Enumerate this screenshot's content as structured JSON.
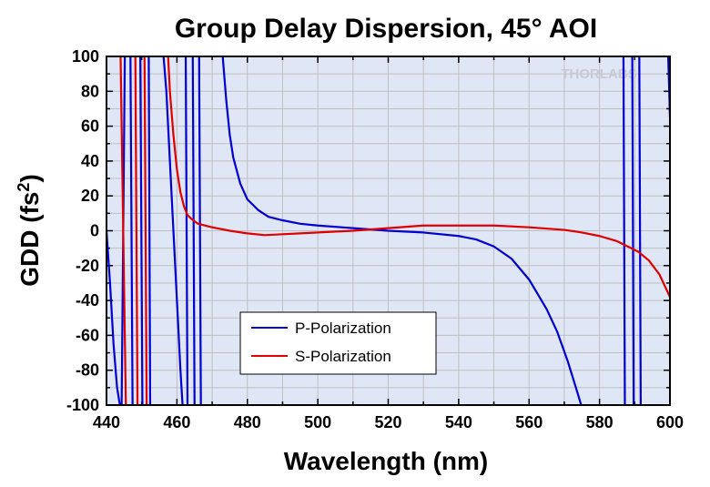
{
  "chart_data": {
    "type": "line",
    "title": "Group Delay Dispersion, 45° AOI",
    "xlabel": "Wavelength (nm)",
    "ylabel_main": "GDD (fs",
    "ylabel_sup": "2",
    "ylabel_close": ")",
    "xlim": [
      440,
      600
    ],
    "ylim": [
      -100,
      100
    ],
    "xticks": [
      440,
      460,
      480,
      500,
      520,
      540,
      560,
      580,
      600
    ],
    "yticks": [
      -100,
      -80,
      -60,
      -40,
      -20,
      0,
      20,
      40,
      60,
      80,
      100
    ],
    "grid": true,
    "legend_position": "bottom-left",
    "watermark": "THORLABS",
    "colors": {
      "plot_background": "#dfe6f6",
      "grid": "#bfbfbf",
      "p": "#0000d0",
      "s": "#e00000"
    },
    "series": [
      {
        "name": "P-Polarization",
        "color": "#0000d0",
        "segments": [
          [
            [
              440,
              0
            ],
            [
              441,
              -30
            ],
            [
              442,
              -65
            ],
            [
              443,
              -90
            ],
            [
              443.8,
              -100
            ]
          ],
          [
            [
              444.3,
              -100
            ],
            [
              445.2,
              100
            ]
          ],
          [
            [
              446.8,
              100
            ],
            [
              447.4,
              -100
            ]
          ],
          [
            [
              449.6,
              100
            ],
            [
              450.2,
              -100
            ]
          ],
          [
            [
              452,
              100
            ],
            [
              452.4,
              -100
            ]
          ],
          [
            [
              456.2,
              100
            ],
            [
              457,
              80
            ],
            [
              458,
              40
            ],
            [
              459,
              0
            ],
            [
              460,
              -40
            ],
            [
              461,
              -80
            ],
            [
              461.6,
              -100
            ]
          ],
          [
            [
              462.5,
              100
            ],
            [
              463,
              -100
            ]
          ],
          [
            [
              464.5,
              100
            ],
            [
              465,
              -100
            ]
          ],
          [
            [
              466.3,
              100
            ],
            [
              466.8,
              -100
            ]
          ],
          [
            [
              473,
              100
            ],
            [
              474,
              75
            ],
            [
              475,
              55
            ],
            [
              476,
              42
            ],
            [
              478,
              27
            ],
            [
              480,
              18
            ],
            [
              483,
              12
            ],
            [
              486,
              8
            ],
            [
              490,
              6
            ],
            [
              495,
              4
            ],
            [
              500,
              3
            ],
            [
              510,
              1.5
            ],
            [
              520,
              0
            ],
            [
              530,
              -1
            ],
            [
              540,
              -3
            ],
            [
              545,
              -5
            ],
            [
              550,
              -9
            ],
            [
              555,
              -16
            ],
            [
              560,
              -28
            ],
            [
              565,
              -45
            ],
            [
              568,
              -58
            ],
            [
              571,
              -75
            ],
            [
              573,
              -88
            ],
            [
              574.8,
              -100
            ]
          ],
          [
            [
              586.8,
              100
            ],
            [
              587.2,
              -100
            ]
          ],
          [
            [
              589.3,
              100
            ],
            [
              589.7,
              -100
            ]
          ],
          [
            [
              591.3,
              100
            ],
            [
              591.7,
              -100
            ]
          ],
          [
            [
              599.5,
              100
            ],
            [
              599.8,
              80
            ],
            [
              600,
              65
            ]
          ]
        ]
      },
      {
        "name": "S-Polarization",
        "color": "#e00000",
        "segments": [
          [
            [
              444,
              100
            ],
            [
              445.5,
              -100
            ]
          ],
          [
            [
              448.2,
              100
            ],
            [
              448.8,
              -100
            ]
          ],
          [
            [
              450.8,
              100
            ],
            [
              451.4,
              -100
            ]
          ],
          [
            [
              457.5,
              100
            ],
            [
              458,
              80
            ],
            [
              459,
              55
            ],
            [
              460,
              35
            ],
            [
              461,
              22
            ],
            [
              462,
              14
            ],
            [
              463,
              9
            ],
            [
              464,
              7
            ],
            [
              466,
              4
            ],
            [
              470,
              2
            ],
            [
              475,
              0
            ],
            [
              480,
              -1.5
            ],
            [
              485,
              -2.5
            ],
            [
              490,
              -2
            ],
            [
              495,
              -1.5
            ],
            [
              500,
              -1
            ],
            [
              510,
              0
            ],
            [
              520,
              1.5
            ],
            [
              530,
              3
            ],
            [
              540,
              3
            ],
            [
              550,
              3
            ],
            [
              560,
              2
            ],
            [
              570,
              0.5
            ],
            [
              575,
              -1
            ],
            [
              580,
              -3
            ],
            [
              585,
              -6
            ],
            [
              588,
              -9
            ],
            [
              591,
              -12
            ],
            [
              594,
              -17
            ],
            [
              597,
              -25
            ],
            [
              600,
              -38
            ]
          ]
        ]
      }
    ]
  }
}
